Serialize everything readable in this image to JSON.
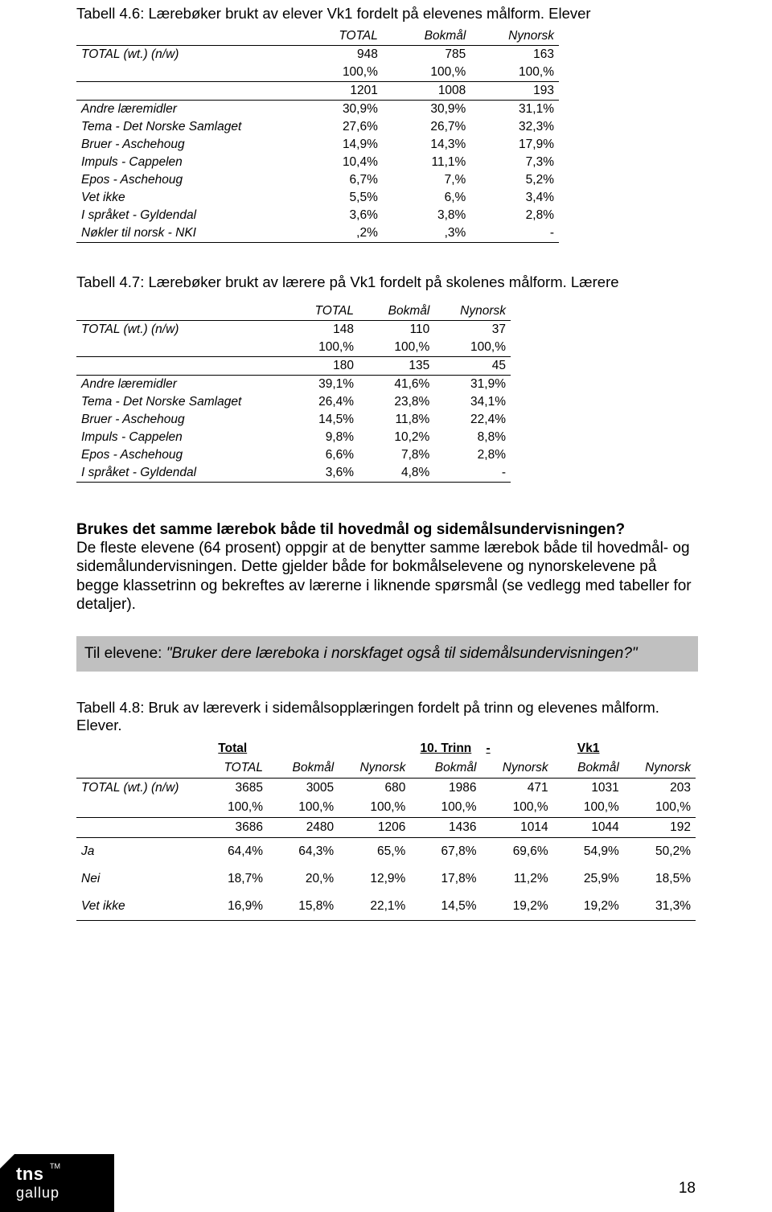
{
  "table46": {
    "caption": "Tabell 4.6: Lærebøker brukt av elever Vk1 fordelt på elevenes målform. Elever",
    "headers": [
      "TOTAL",
      "Bokmål",
      "Nynorsk"
    ],
    "total_label": "TOTAL (wt.) (n/w)",
    "totals_n": [
      "948",
      "785",
      "163"
    ],
    "totals_pct": [
      "100,%",
      "100,%",
      "100,%"
    ],
    "base_n": [
      "1201",
      "1008",
      "193"
    ],
    "rows": [
      {
        "label": "Andre læremidler",
        "v": [
          "30,9%",
          "30,9%",
          "31,1%"
        ]
      },
      {
        "label": "Tema - Det Norske Samlaget",
        "v": [
          "27,6%",
          "26,7%",
          "32,3%"
        ]
      },
      {
        "label": "Bruer - Aschehoug",
        "v": [
          "14,9%",
          "14,3%",
          "17,9%"
        ]
      },
      {
        "label": "Impuls - Cappelen",
        "v": [
          "10,4%",
          "11,1%",
          "7,3%"
        ]
      },
      {
        "label": "Epos - Aschehoug",
        "v": [
          "6,7%",
          "7,%",
          "5,2%"
        ]
      },
      {
        "label": "Vet ikke",
        "v": [
          "5,5%",
          "6,%",
          "3,4%"
        ]
      },
      {
        "label": "I språket - Gyldendal",
        "v": [
          "3,6%",
          "3,8%",
          "2,8%"
        ]
      },
      {
        "label": "Nøkler til norsk - NKI",
        "v": [
          ",2%",
          ",3%",
          "-"
        ]
      }
    ]
  },
  "table47": {
    "caption": "Tabell 4.7: Lærebøker brukt av lærere på Vk1 fordelt på skolenes målform. Lærere",
    "headers": [
      "TOTAL",
      "Bokmål",
      "Nynorsk"
    ],
    "total_label": "TOTAL (wt.) (n/w)",
    "totals_n": [
      "148",
      "110",
      "37"
    ],
    "totals_pct": [
      "100,%",
      "100,%",
      "100,%"
    ],
    "base_n": [
      "180",
      "135",
      "45"
    ],
    "rows": [
      {
        "label": "Andre læremidler",
        "v": [
          "39,1%",
          "41,6%",
          "31,9%"
        ]
      },
      {
        "label": "Tema - Det Norske Samlaget",
        "v": [
          "26,4%",
          "23,8%",
          "34,1%"
        ]
      },
      {
        "label": "Bruer - Aschehoug",
        "v": [
          "14,5%",
          "11,8%",
          "22,4%"
        ]
      },
      {
        "label": "Impuls - Cappelen",
        "v": [
          "9,8%",
          "10,2%",
          "8,8%"
        ]
      },
      {
        "label": "Epos - Aschehoug",
        "v": [
          "6,6%",
          "7,8%",
          "2,8%"
        ]
      },
      {
        "label": "I språket - Gyldendal",
        "v": [
          "3,6%",
          "4,8%",
          "-"
        ]
      }
    ]
  },
  "body": {
    "heading": "Brukes det samme lærebok både til hovedmål og sidemålsundervisningen?",
    "text": "De fleste elevene (64 prosent) oppgir at de benytter samme lærebok både til hovedmål- og sidemålundervisningen. Dette gjelder både for bokmålselevene og nynorskelevene på begge klassetrinn og bekreftes av lærerne i liknende spørsmål (se vedlegg med tabeller for detaljer)."
  },
  "greybox": {
    "lead": "Til elevene: ",
    "quote": "\"Bruker dere læreboka i norskfaget også til sidemålsundervisningen?\""
  },
  "table48": {
    "caption": "Tabell 4.8: Bruk av læreverk i sidemålsopplæringen fordelt på trinn og elevenes målform. Elever.",
    "super_headers": [
      "Total",
      "10. Trinn",
      "Vk1"
    ],
    "sub_headers": [
      "TOTAL",
      "Bokmål",
      "Nynorsk",
      "Bokmål",
      "Nynorsk",
      "Bokmål",
      "Nynorsk"
    ],
    "total_label": "TOTAL (wt.) (n/w)",
    "totals_n": [
      "3685",
      "3005",
      "680",
      "1986",
      "471",
      "1031",
      "203"
    ],
    "totals_pct": [
      "100,%",
      "100,%",
      "100,%",
      "100,%",
      "100,%",
      "100,%",
      "100,%"
    ],
    "base_n": [
      "3686",
      "2480",
      "1206",
      "1436",
      "1014",
      "1044",
      "192"
    ],
    "rows": [
      {
        "label": "Ja",
        "v": [
          "64,4%",
          "64,3%",
          "65,%",
          "67,8%",
          "69,6%",
          "54,9%",
          "50,2%"
        ]
      },
      {
        "label": "Nei",
        "v": [
          "18,7%",
          "20,%",
          "12,9%",
          "17,8%",
          "11,2%",
          "25,9%",
          "18,5%"
        ]
      },
      {
        "label": "Vet ikke",
        "v": [
          "16,9%",
          "15,8%",
          "22,1%",
          "14,5%",
          "19,2%",
          "19,2%",
          "31,3%"
        ]
      }
    ]
  },
  "logo": {
    "line1": "tns",
    "tm": "TM",
    "line2": "gallup"
  },
  "page_number": "18"
}
